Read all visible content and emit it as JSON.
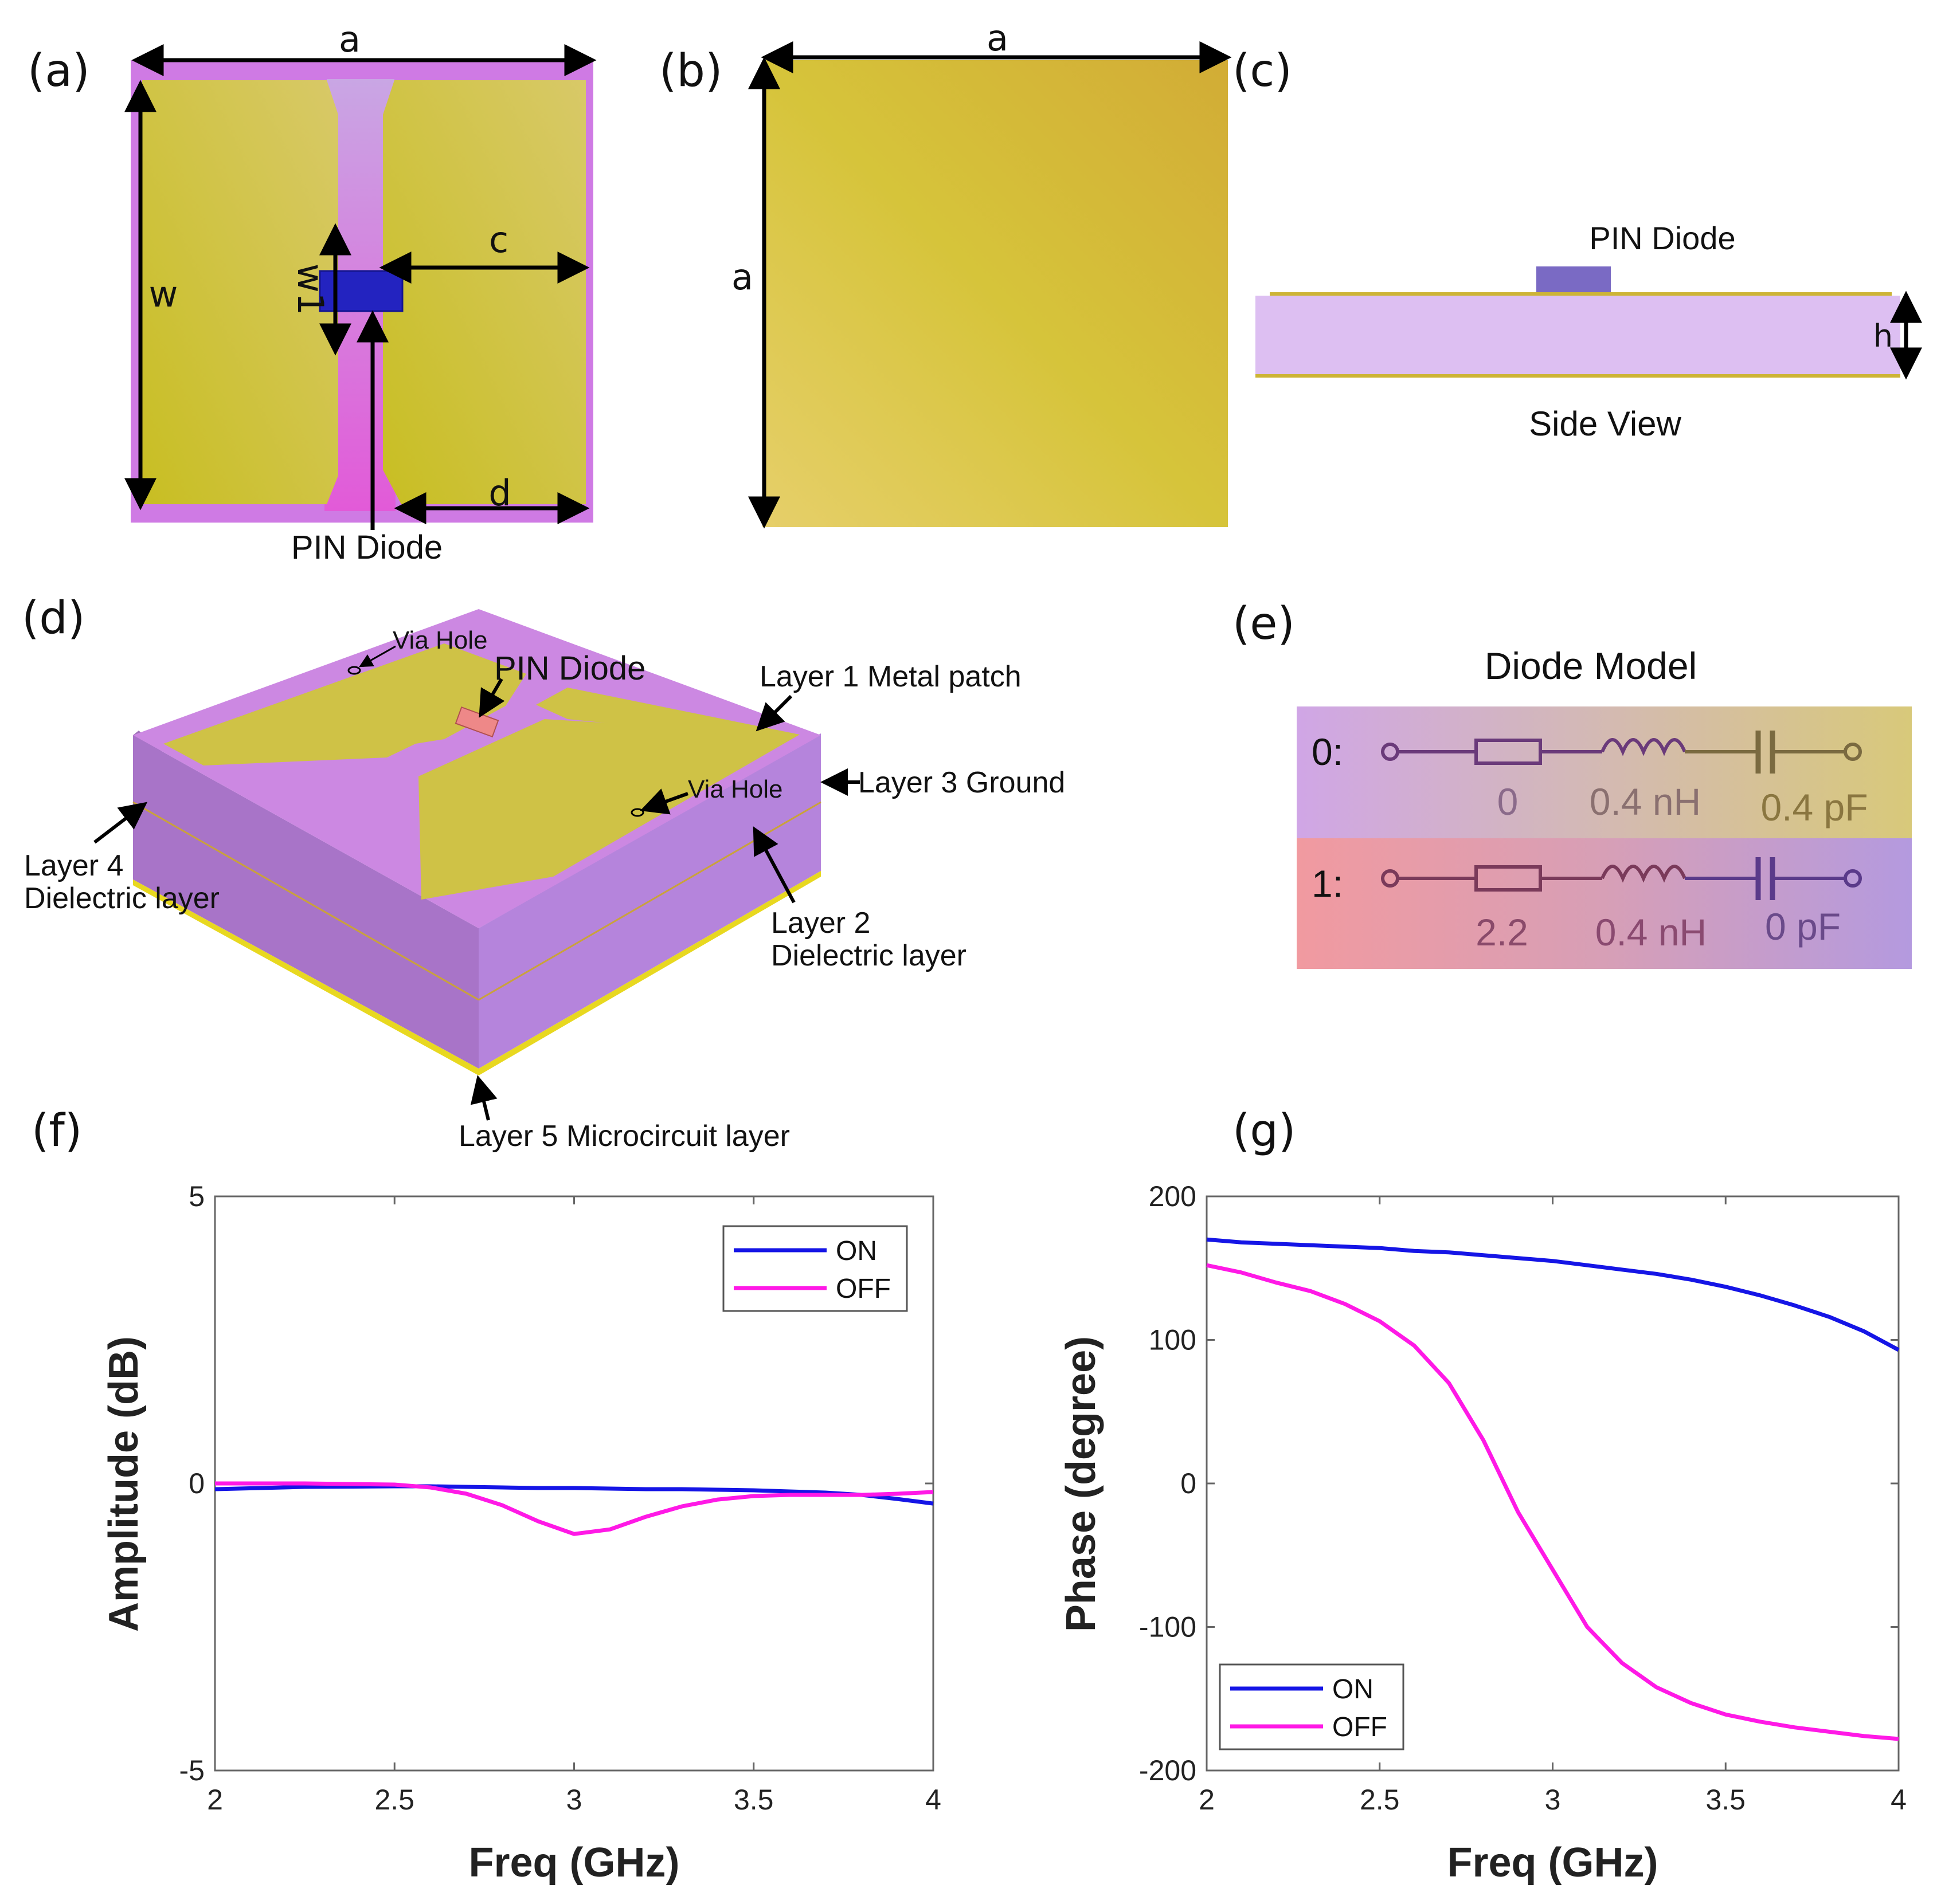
{
  "panels": {
    "a": {
      "label": "(a)",
      "dims": {
        "a": "a",
        "w": "w",
        "w1": "w1",
        "c": "c",
        "d": "d"
      },
      "pin_label": "PIN Diode"
    },
    "b": {
      "label": "(b)",
      "dims": {
        "a_top": "a",
        "a_side": "a"
      }
    },
    "c": {
      "label": "(c)",
      "pin_label": "PIN Diode",
      "h_label": "h",
      "caption": "Side View"
    },
    "d": {
      "label": "(d)",
      "pin_label": "PIN Diode",
      "via_hole_1": "Via Hole",
      "via_hole_2": "Via Hole",
      "layer1": "Layer 1  Metal patch",
      "layer3": "Layer 3  Ground",
      "layer4_line1": "Layer 4",
      "layer4_line2": "Dielectric layer",
      "layer2_line1": "Layer 2",
      "layer2_line2": "Dielectric layer",
      "layer5": "Layer 5  Microcircuit layer"
    },
    "e": {
      "label": "(e)",
      "title": "Diode Model",
      "state0": {
        "label": "0:",
        "r": "0",
        "l": "0.4 nH",
        "c": "0.4 pF"
      },
      "state1": {
        "label": "1:",
        "r": "2.2",
        "l": "0.4 nH",
        "c": "0 pF"
      }
    },
    "f": {
      "label": "(f)"
    },
    "g": {
      "label": "(g)"
    }
  },
  "colors": {
    "on": "#1515e6",
    "off": "#ff19e6",
    "metal": "#cdbd3c",
    "substrate": "#cc88e0",
    "diode": "#2222bb"
  },
  "chart_data": [
    {
      "id": "f",
      "type": "line",
      "xlabel": "Freq (GHz)",
      "ylabel": "Amplitude (dB)",
      "xlim": [
        2,
        4
      ],
      "ylim": [
        -5,
        5
      ],
      "xticks": [
        "2",
        "2.5",
        "3",
        "3.5",
        "4"
      ],
      "yticks": [
        "-5",
        "0",
        "5"
      ],
      "x": [
        2.0,
        2.25,
        2.5,
        2.6,
        2.7,
        2.8,
        2.9,
        3.0,
        3.1,
        3.2,
        3.3,
        3.4,
        3.5,
        3.6,
        3.7,
        3.8,
        3.9,
        4.0
      ],
      "series": [
        {
          "name": "ON",
          "values": [
            -0.1,
            -0.06,
            -0.05,
            -0.05,
            -0.06,
            -0.07,
            -0.08,
            -0.08,
            -0.09,
            -0.1,
            -0.1,
            -0.11,
            -0.12,
            -0.14,
            -0.16,
            -0.2,
            -0.27,
            -0.35
          ]
        },
        {
          "name": "OFF",
          "values": [
            0.0,
            0.0,
            -0.02,
            -0.07,
            -0.18,
            -0.38,
            -0.66,
            -0.88,
            -0.8,
            -0.58,
            -0.4,
            -0.28,
            -0.22,
            -0.2,
            -0.2,
            -0.2,
            -0.18,
            -0.15
          ]
        }
      ]
    },
    {
      "id": "g",
      "type": "line",
      "xlabel": "Freq (GHz)",
      "ylabel": "Phase (degree)",
      "xlim": [
        2,
        4
      ],
      "ylim": [
        -200,
        200
      ],
      "xticks": [
        "2",
        "2.5",
        "3",
        "3.5",
        "4"
      ],
      "yticks": [
        "-200",
        "-100",
        "0",
        "100",
        "200"
      ],
      "x": [
        2.0,
        2.1,
        2.2,
        2.3,
        2.4,
        2.5,
        2.6,
        2.7,
        2.8,
        2.9,
        3.0,
        3.1,
        3.2,
        3.3,
        3.4,
        3.5,
        3.6,
        3.7,
        3.8,
        3.9,
        4.0
      ],
      "series": [
        {
          "name": "ON",
          "values": [
            170,
            168,
            167,
            166,
            165,
            164,
            162,
            161,
            159,
            157,
            155,
            152,
            149,
            146,
            142,
            137,
            131,
            124,
            116,
            106,
            93
          ]
        },
        {
          "name": "OFF",
          "values": [
            152,
            147,
            140,
            134,
            125,
            113,
            96,
            70,
            30,
            -20,
            -60,
            -100,
            -125,
            -142,
            -153,
            -161,
            -166,
            -170,
            -173,
            -176,
            -178
          ]
        }
      ]
    }
  ]
}
